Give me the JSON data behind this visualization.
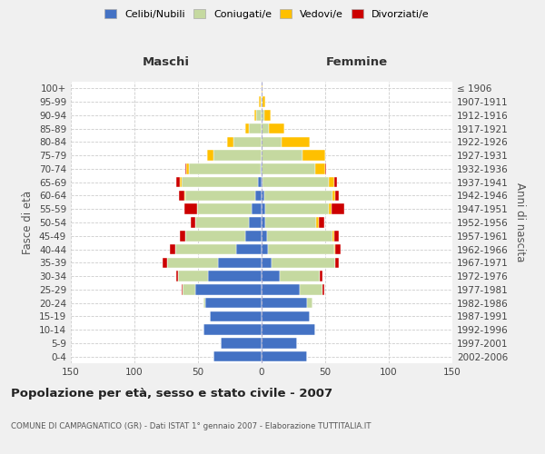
{
  "age_groups": [
    "0-4",
    "5-9",
    "10-14",
    "15-19",
    "20-24",
    "25-29",
    "30-34",
    "35-39",
    "40-44",
    "45-49",
    "50-54",
    "55-59",
    "60-64",
    "65-69",
    "70-74",
    "75-79",
    "80-84",
    "85-89",
    "90-94",
    "95-99",
    "100+"
  ],
  "birth_years": [
    "2002-2006",
    "1997-2001",
    "1992-1996",
    "1987-1991",
    "1982-1986",
    "1977-1981",
    "1972-1976",
    "1967-1971",
    "1962-1966",
    "1957-1961",
    "1952-1956",
    "1947-1951",
    "1942-1946",
    "1937-1941",
    "1932-1936",
    "1927-1931",
    "1922-1926",
    "1917-1921",
    "1912-1916",
    "1907-1911",
    "≤ 1906"
  ],
  "males": {
    "celibi": [
      38,
      32,
      46,
      41,
      44,
      52,
      42,
      34,
      20,
      13,
      10,
      8,
      5,
      3,
      1,
      0,
      0,
      0,
      0,
      0,
      0
    ],
    "coniugati": [
      0,
      0,
      0,
      0,
      2,
      10,
      24,
      40,
      48,
      47,
      42,
      43,
      55,
      60,
      56,
      38,
      22,
      10,
      4,
      1,
      0
    ],
    "vedovi": [
      0,
      0,
      0,
      0,
      0,
      0,
      0,
      0,
      0,
      0,
      0,
      0,
      1,
      1,
      2,
      5,
      5,
      3,
      2,
      1,
      0
    ],
    "divorziati": [
      0,
      0,
      0,
      0,
      0,
      1,
      1,
      4,
      4,
      4,
      4,
      10,
      4,
      3,
      1,
      0,
      0,
      0,
      0,
      0,
      0
    ]
  },
  "females": {
    "nubili": [
      36,
      28,
      42,
      38,
      36,
      30,
      14,
      8,
      5,
      4,
      3,
      3,
      2,
      1,
      0,
      0,
      0,
      0,
      0,
      0,
      0
    ],
    "coniugate": [
      0,
      0,
      0,
      0,
      4,
      18,
      32,
      50,
      52,
      52,
      40,
      50,
      54,
      52,
      42,
      32,
      16,
      6,
      2,
      1,
      0
    ],
    "vedove": [
      0,
      0,
      0,
      0,
      0,
      0,
      0,
      0,
      1,
      1,
      2,
      2,
      2,
      4,
      8,
      18,
      22,
      12,
      5,
      2,
      1
    ],
    "divorziate": [
      0,
      0,
      0,
      0,
      0,
      1,
      2,
      3,
      4,
      4,
      4,
      10,
      3,
      2,
      1,
      0,
      0,
      0,
      0,
      0,
      0
    ]
  },
  "colors": {
    "celibi": "#4472c4",
    "coniugati": "#c5d9a0",
    "vedovi": "#ffc000",
    "divorziati": "#cc0000"
  },
  "legend_labels": [
    "Celibi/Nubili",
    "Coniugati/e",
    "Vedovi/e",
    "Divorziati/e"
  ],
  "title": "Popolazione per età, sesso e stato civile - 2007",
  "subtitle": "COMUNE DI CAMPAGNATICO (GR) - Dati ISTAT 1° gennaio 2007 - Elaborazione TUTTITALIA.IT",
  "xlabel_left": "Maschi",
  "xlabel_right": "Femmine",
  "ylabel_left": "Fasce di età",
  "ylabel_right": "Anni di nascita",
  "xlim": 150,
  "bg_color": "#f0f0f0",
  "plot_bg": "#ffffff"
}
